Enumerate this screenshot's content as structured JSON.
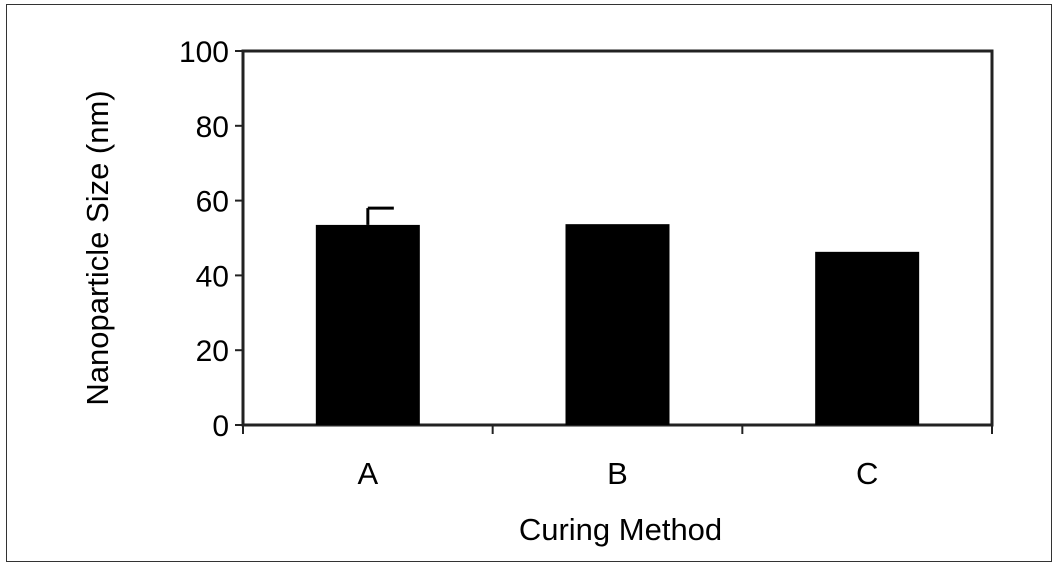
{
  "chart_data": {
    "type": "bar",
    "categories": [
      "A",
      "B",
      "C"
    ],
    "values": [
      53.5,
      53.7,
      46.3
    ],
    "error_bars": [
      4.5,
      0,
      0
    ],
    "title": "",
    "xlabel": "Curing Method",
    "ylabel": "Nanoparticle Size (nm)",
    "ylim": [
      0,
      100
    ],
    "yticks": [
      "0",
      "20",
      "40",
      "60",
      "80",
      "100"
    ],
    "grid": false,
    "bar_color": "#000000"
  }
}
